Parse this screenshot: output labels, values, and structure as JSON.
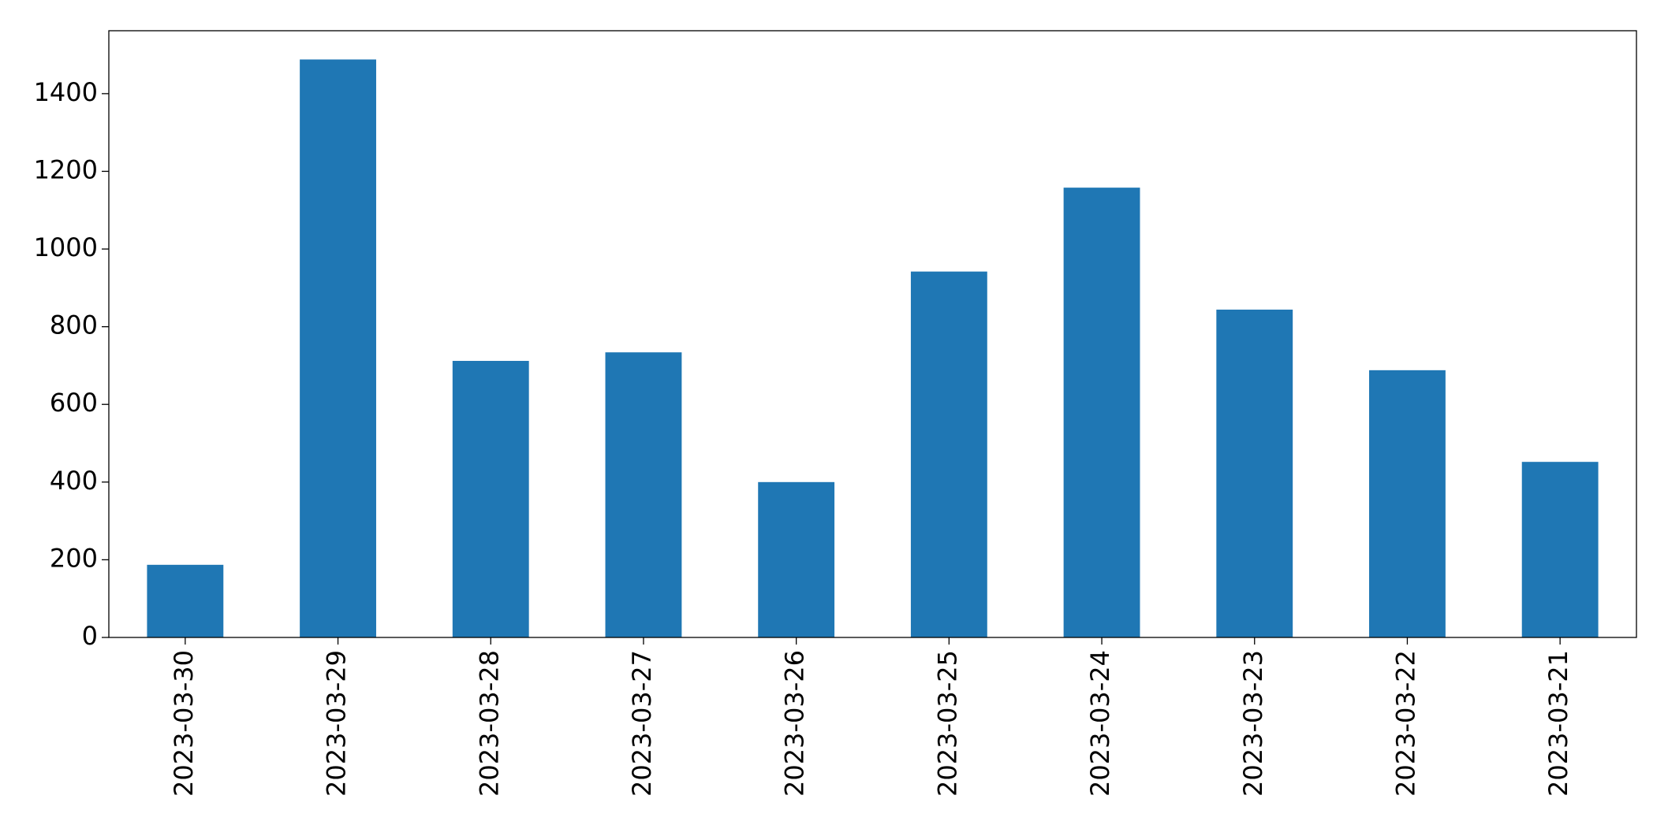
{
  "chart_data": {
    "type": "bar",
    "categories": [
      "2023-03-30",
      "2023-03-29",
      "2023-03-28",
      "2023-03-27",
      "2023-03-26",
      "2023-03-25",
      "2023-03-24",
      "2023-03-23",
      "2023-03-22",
      "2023-03-21"
    ],
    "values": [
      187,
      1488,
      712,
      734,
      400,
      942,
      1158,
      844,
      688,
      452
    ],
    "color": "#1f77b4",
    "ylim": [
      0,
      1562
    ],
    "yticks": [
      0,
      200,
      400,
      600,
      800,
      1000,
      1200,
      1400
    ],
    "grid": false
  }
}
